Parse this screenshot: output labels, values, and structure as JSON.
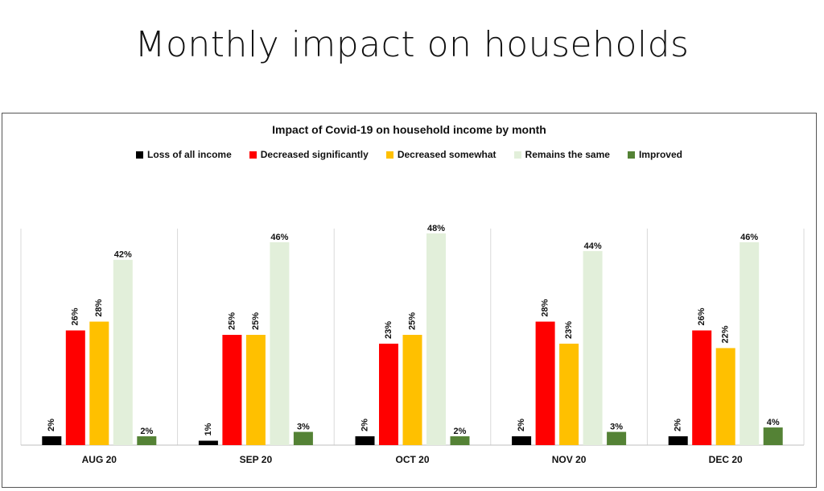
{
  "slide": {
    "title": "Monthly impact on households"
  },
  "chart_data": {
    "type": "bar",
    "title": "Impact of Covid-19 on household income by month",
    "categories": [
      "AUG 20",
      "SEP 20",
      "OCT 20",
      "NOV 20",
      "DEC 20"
    ],
    "series": [
      {
        "name": "Loss of all income",
        "color": "#000000",
        "values": [
          2,
          1,
          2,
          2,
          2
        ],
        "labels": [
          "2%",
          "1%",
          "2%",
          "2%",
          "2%"
        ]
      },
      {
        "name": "Decreased significantly",
        "color": "#ff0000",
        "values": [
          26,
          25,
          23,
          28,
          26
        ],
        "labels": [
          "26%",
          "25%",
          "23%",
          "28%",
          "26%"
        ]
      },
      {
        "name": "Decreased somewhat",
        "color": "#ffc000",
        "values": [
          28,
          25,
          25,
          23,
          22
        ],
        "labels": [
          "28%",
          "25%",
          "25%",
          "23%",
          "22%"
        ]
      },
      {
        "name": "Remains the same",
        "color": "#e2efda",
        "values": [
          42,
          46,
          48,
          44,
          46
        ],
        "labels": [
          "42%",
          "46%",
          "48%",
          "44%",
          "46%"
        ]
      },
      {
        "name": "Improved",
        "color": "#548235",
        "values": [
          2,
          3,
          2,
          3,
          4
        ],
        "labels": [
          "2%",
          "3%",
          "2%",
          "3%",
          "4%"
        ]
      }
    ],
    "ylim": [
      0,
      50
    ],
    "xlabel": "",
    "ylabel": "",
    "grid": false,
    "legend_position": "top"
  }
}
